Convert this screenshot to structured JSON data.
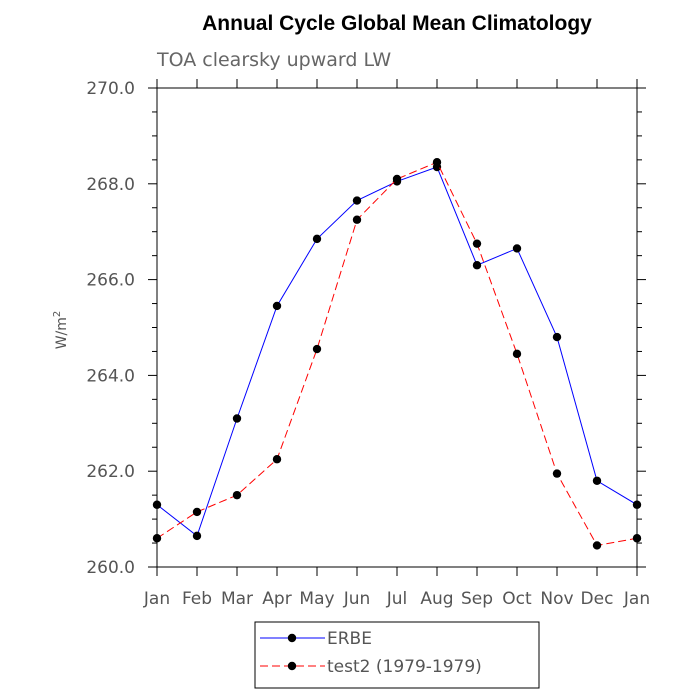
{
  "chart_data": {
    "type": "line",
    "title": "Annual Cycle Global Mean Climatology",
    "subtitle": "TOA clearsky upward LW",
    "ylabel": "W/m",
    "ylabel_superscript": "2",
    "xlabel": "",
    "categories": [
      "Jan",
      "Feb",
      "Mar",
      "Apr",
      "May",
      "Jun",
      "Jul",
      "Aug",
      "Sep",
      "Oct",
      "Nov",
      "Dec",
      "Jan"
    ],
    "ylim": [
      260.0,
      270.0
    ],
    "yticks": [
      260.0,
      262.0,
      264.0,
      266.0,
      268.0,
      270.0
    ],
    "ytick_labels": [
      "260.0",
      "262.0",
      "264.0",
      "266.0",
      "268.0",
      "270.0"
    ],
    "grid": false,
    "legend_position": "bottom-center",
    "series": [
      {
        "name": "ERBE",
        "color": "#0000ff",
        "style": "solid",
        "values": [
          261.3,
          260.65,
          263.1,
          265.45,
          266.85,
          267.65,
          268.05,
          268.35,
          266.3,
          266.65,
          264.8,
          261.8,
          261.3
        ]
      },
      {
        "name": "test2 (1979-1979)",
        "color": "#ff0000",
        "style": "dashed",
        "values": [
          260.6,
          261.15,
          261.5,
          262.25,
          264.55,
          267.25,
          268.1,
          268.45,
          266.75,
          264.45,
          261.95,
          260.45,
          260.6
        ]
      }
    ]
  }
}
